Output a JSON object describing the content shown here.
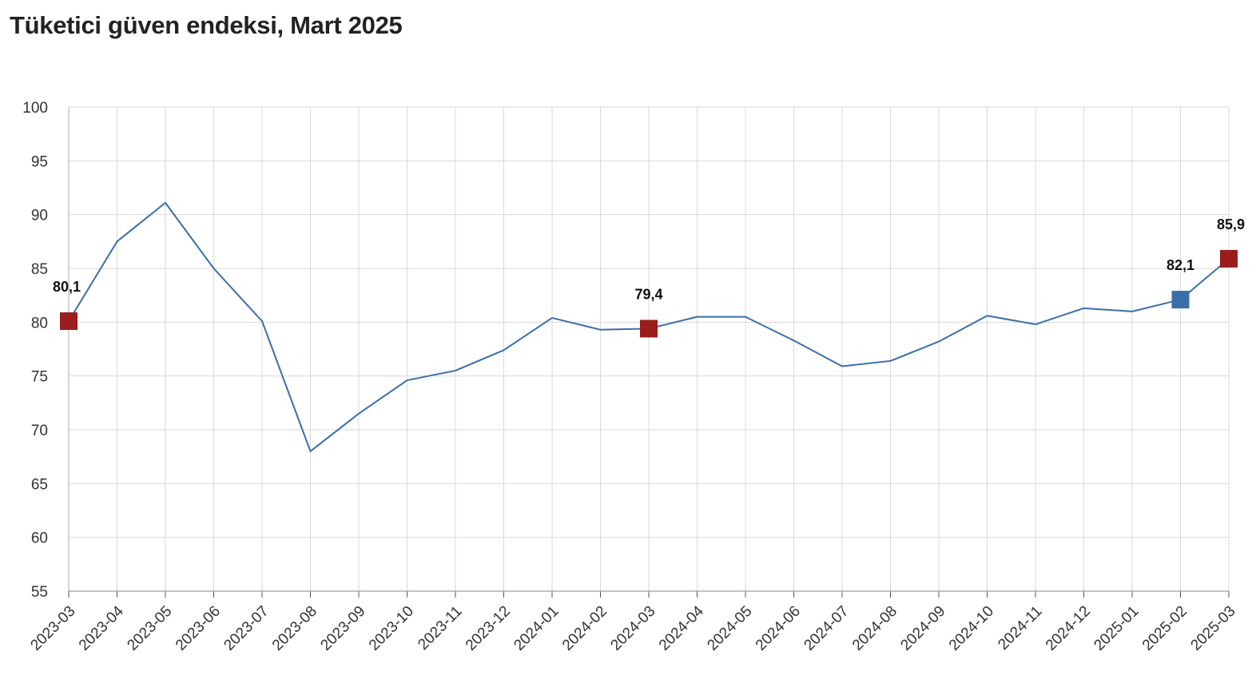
{
  "chart_data": {
    "type": "line",
    "title": "Tüketici güven endeksi, Mart 2025",
    "xlabel": "",
    "ylabel": "",
    "ylim": [
      55,
      100
    ],
    "yticks": [
      55,
      60,
      65,
      70,
      75,
      80,
      85,
      90,
      95,
      100
    ],
    "grid": true,
    "colors": {
      "line": "#3a6eaa",
      "highlight_red": "#9b1c1c",
      "highlight_blue": "#3a6eaa",
      "grid": "#d9d9d9"
    },
    "x": [
      "2023-03",
      "2023-04",
      "2023-05",
      "2023-06",
      "2023-07",
      "2023-08",
      "2023-09",
      "2023-10",
      "2023-11",
      "2023-12",
      "2024-01",
      "2024-02",
      "2024-03",
      "2024-04",
      "2024-05",
      "2024-06",
      "2024-07",
      "2024-08",
      "2024-09",
      "2024-10",
      "2024-11",
      "2024-12",
      "2025-01",
      "2025-02",
      "2025-03"
    ],
    "series": [
      {
        "values": [
          80.1,
          87.5,
          91.1,
          85.0,
          80.1,
          68.0,
          71.5,
          74.6,
          75.5,
          77.4,
          80.4,
          79.3,
          79.4,
          80.5,
          80.5,
          78.3,
          75.9,
          76.4,
          78.2,
          80.6,
          79.8,
          81.3,
          81.0,
          82.1,
          85.9
        ]
      }
    ],
    "annotations": [
      {
        "x": "2023-03",
        "value": 80.1,
        "label": "80,1",
        "color": "#9b1c1c"
      },
      {
        "x": "2024-03",
        "value": 79.4,
        "label": "79,4",
        "color": "#9b1c1c"
      },
      {
        "x": "2025-02",
        "value": 82.1,
        "label": "82,1",
        "color": "#3a6eaa"
      },
      {
        "x": "2025-03",
        "value": 85.9,
        "label": "85,9",
        "color": "#9b1c1c"
      }
    ]
  }
}
